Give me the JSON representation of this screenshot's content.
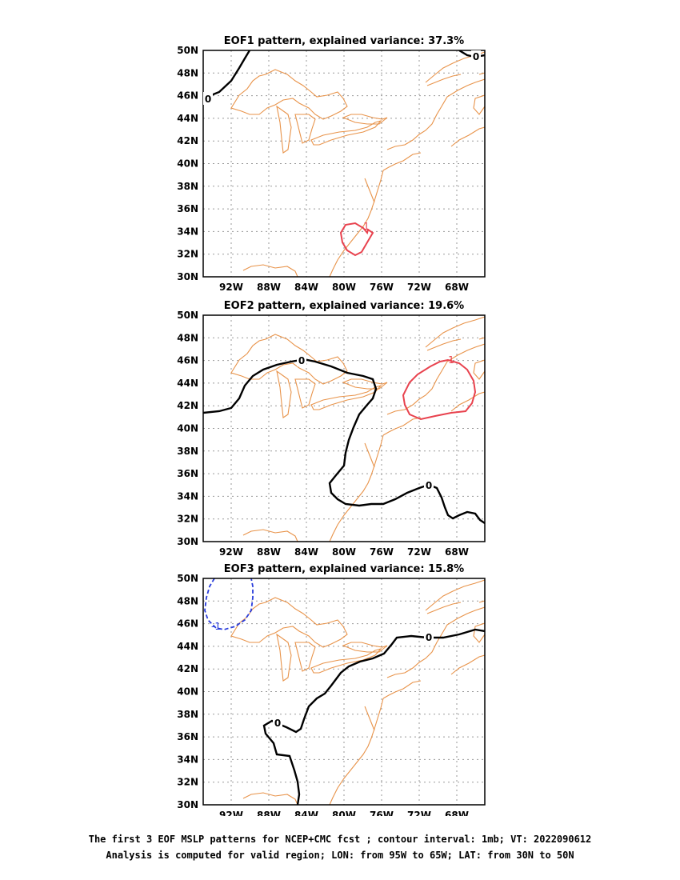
{
  "panels": [
    {
      "title": "EOF1 pattern, explained variance: 37.3%",
      "contour_labels": [
        "0",
        "0",
        "1"
      ]
    },
    {
      "title": "EOF2 pattern, explained variance: 19.6%",
      "contour_labels": [
        "0",
        "0",
        "1"
      ]
    },
    {
      "title": "EOF3 pattern, explained variance: 15.8%",
      "contour_labels": [
        "-1",
        "0",
        "0"
      ]
    }
  ],
  "lat_ticks": [
    "50N",
    "48N",
    "46N",
    "44N",
    "42N",
    "40N",
    "38N",
    "36N",
    "34N",
    "32N",
    "30N"
  ],
  "lon_ticks": [
    "92W",
    "88W",
    "84W",
    "80W",
    "76W",
    "72W",
    "68W"
  ],
  "caption": {
    "line1": "The first 3 EOF MSLP patterns for NCEP+CMC fcst ; contour interval: 1mb; VT: 2022090612",
    "line2": "Analysis is computed for valid region; LON: from 95W to 65W; LAT: from 30N to 50N"
  },
  "colors": {
    "zero_contour": "#000000",
    "positive_contour": "#e8424e",
    "negative_contour": "#2a3ddb",
    "coastline": "#e8934a",
    "grid": "#999999"
  }
}
